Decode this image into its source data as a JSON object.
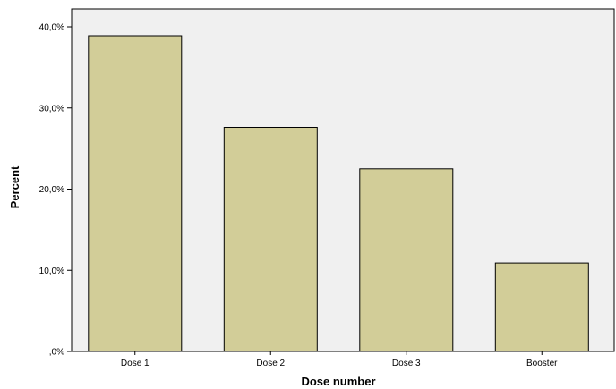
{
  "chart_data": {
    "type": "bar",
    "categories": [
      "Dose 1",
      "Dose 2",
      "Dose 3",
      "Booster"
    ],
    "values": [
      38.9,
      27.6,
      22.5,
      10.9
    ],
    "title": "",
    "xlabel": "Dose number",
    "ylabel": "Percent",
    "ylim": [
      0,
      40
    ],
    "yticks": [
      0,
      10,
      20,
      30,
      40
    ],
    "ytick_labels": [
      ",0%",
      "10,0%",
      "20,0%",
      "30,0%",
      "40,0%"
    ],
    "grid": false,
    "legend": "none",
    "colors": {
      "bar_fill": "#D2CD98",
      "bar_stroke": "#000000",
      "plot_background": "#F0F0F0",
      "axis": "#000000"
    }
  }
}
